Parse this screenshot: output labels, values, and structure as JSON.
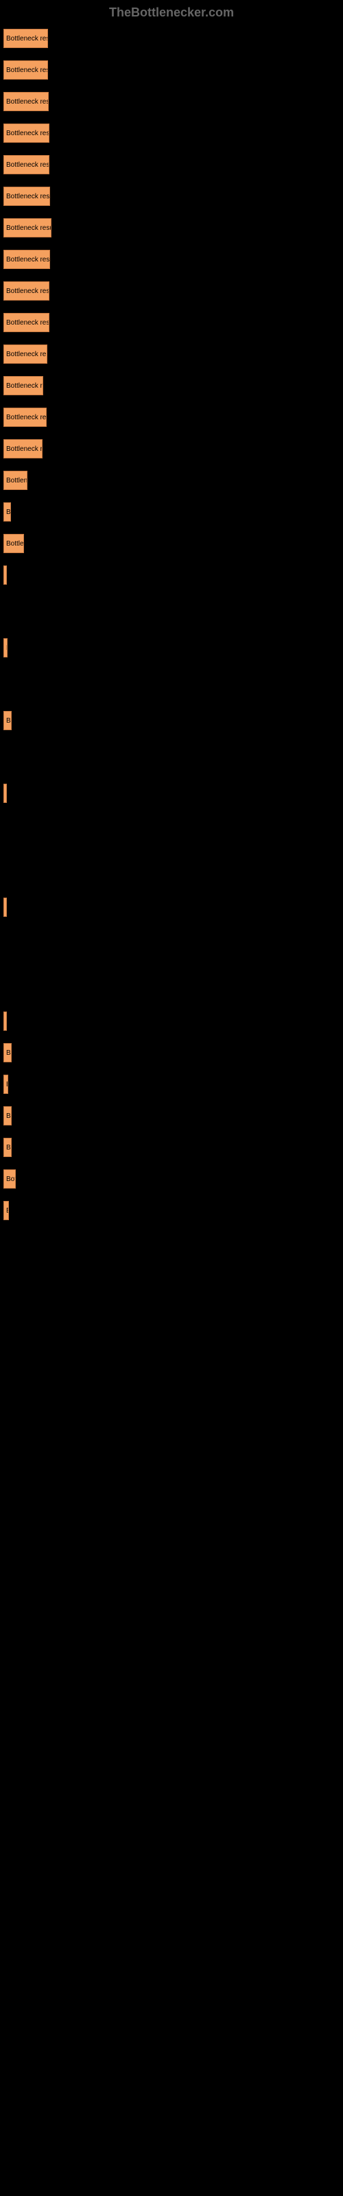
{
  "header": {
    "title": "TheBottlenecker.com"
  },
  "chart": {
    "type": "bar",
    "background_color": "#000000",
    "bar_color": "#f5a05e",
    "bar_border_color": "#c67840",
    "text_color": "#000000",
    "font_size": 10,
    "bars": [
      {
        "width": 65,
        "label": "Bottleneck resu"
      },
      {
        "width": 65,
        "label": "Bottleneck resu"
      },
      {
        "width": 66,
        "label": "Bottleneck resu"
      },
      {
        "width": 67,
        "label": "Bottleneck resu"
      },
      {
        "width": 67,
        "label": "Bottleneck resu"
      },
      {
        "width": 68,
        "label": "Bottleneck resu"
      },
      {
        "width": 70,
        "label": "Bottleneck resu"
      },
      {
        "width": 68,
        "label": "Bottleneck resu"
      },
      {
        "width": 67,
        "label": "Bottleneck resu"
      },
      {
        "width": 67,
        "label": "Bottleneck resu"
      },
      {
        "width": 64,
        "label": "Bottleneck re"
      },
      {
        "width": 58,
        "label": "Bottleneck r"
      },
      {
        "width": 63,
        "label": "Bottleneck re"
      },
      {
        "width": 57,
        "label": "Bottleneck r"
      },
      {
        "width": 35,
        "label": "Bottlene"
      },
      {
        "width": 11,
        "label": "Bo"
      },
      {
        "width": 30,
        "label": "Bottle"
      },
      {
        "width": 4,
        "label": "{"
      },
      {
        "width": 0,
        "label": "",
        "spacer": true
      },
      {
        "width": 6,
        "label": "B"
      },
      {
        "width": 0,
        "label": "",
        "spacer": true
      },
      {
        "width": 12,
        "label": "Bo"
      },
      {
        "width": 0,
        "label": "",
        "spacer": true
      },
      {
        "width": 2,
        "label": ""
      },
      {
        "width": 0,
        "label": "",
        "spacer": true
      },
      {
        "width": 0,
        "label": "",
        "spacer": true
      },
      {
        "width": 2,
        "label": ""
      },
      {
        "width": 0,
        "label": "",
        "spacer": true
      },
      {
        "width": 0,
        "label": "",
        "spacer": true
      },
      {
        "width": 1,
        "label": ""
      },
      {
        "width": 12,
        "label": "Bo"
      },
      {
        "width": 7,
        "label": "B"
      },
      {
        "width": 12,
        "label": "Bo"
      },
      {
        "width": 12,
        "label": "Bo"
      },
      {
        "width": 18,
        "label": "Bott"
      },
      {
        "width": 8,
        "label": "B"
      }
    ]
  }
}
